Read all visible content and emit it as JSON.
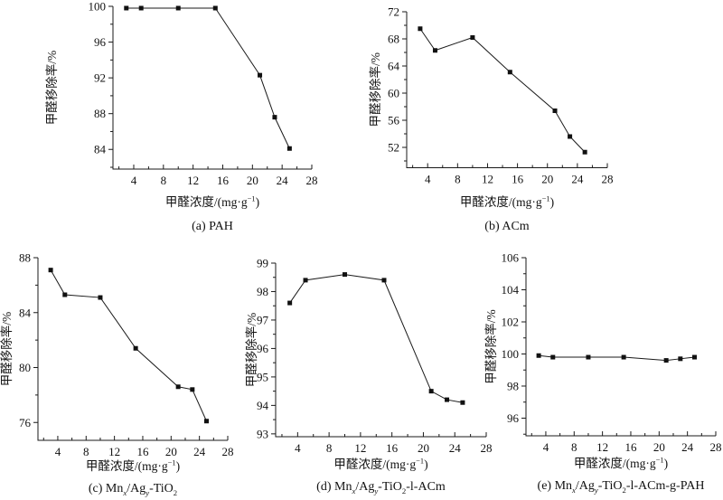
{
  "figure": {
    "description": "五个甲醛移除率曲线图 (a)-(e)",
    "ylabel": "甲醛移除率/%",
    "xlabel_text": "甲醛浓度/(mg·g⁻¹)",
    "line_color": "#1a1a1a",
    "marker": "square"
  },
  "chart_data": [
    {
      "type": "line",
      "name": "PAH",
      "caption_text": "(a) PAH",
      "caption_segments": [
        [
          "(a) PAH",
          ""
        ]
      ],
      "xlabel": "甲醛浓度/(mg·g⁻¹)",
      "xlabel_segments": [
        [
          "甲醛浓度/(mg·g",
          ""
        ],
        [
          "−1",
          "sup"
        ],
        [
          ")",
          ""
        ]
      ],
      "ylabel": "甲醛移除率/%",
      "x": [
        3,
        5,
        10,
        15,
        21,
        23,
        25
      ],
      "values": [
        99.8,
        99.8,
        99.8,
        99.8,
        92.3,
        87.6,
        84.1
      ],
      "xlim": [
        1.2,
        28
      ],
      "xticks": [
        4,
        8,
        12,
        16,
        20,
        24,
        28
      ],
      "xminor": 2,
      "ylim": [
        81.8,
        100
      ],
      "yticks": [
        84,
        88,
        92,
        96,
        100
      ],
      "yminor": 2,
      "grid": false,
      "legend": "none"
    },
    {
      "type": "line",
      "name": "ACm",
      "caption_text": "(b) ACm",
      "caption_segments": [
        [
          "(b) ACm",
          ""
        ]
      ],
      "xlabel": "甲醛浓度/(mg·g⁻¹)",
      "xlabel_segments": [
        [
          "甲醛浓度/(mg·g",
          ""
        ],
        [
          "−1",
          "sup"
        ],
        [
          ")",
          ""
        ]
      ],
      "ylabel": "甲醛移除率/%",
      "x": [
        3,
        5,
        10,
        15,
        21,
        23,
        25
      ],
      "values": [
        69.5,
        66.3,
        68.2,
        63.1,
        57.4,
        53.6,
        51.3
      ],
      "xlim": [
        1.2,
        28
      ],
      "xticks": [
        4,
        8,
        12,
        16,
        20,
        24,
        28
      ],
      "xminor": 2,
      "ylim": [
        49,
        72
      ],
      "yticks": [
        52,
        56,
        60,
        64,
        68,
        72
      ],
      "yminor": 2,
      "grid": false,
      "legend": "none"
    },
    {
      "type": "line",
      "name": "Mnx/Agy-TiO2",
      "caption_text": "(c) Mnx/Agy-TiO2",
      "caption_segments": [
        [
          "(c) Mn",
          ""
        ],
        [
          "x",
          "subi"
        ],
        [
          "/Ag",
          ""
        ],
        [
          "y",
          "subi"
        ],
        [
          "-TiO",
          ""
        ],
        [
          "2",
          "sub"
        ]
      ],
      "xlabel": "甲醛浓度/(mg·g⁻¹)",
      "xlabel_segments": [
        [
          "甲醛浓度/(mg·g",
          ""
        ],
        [
          "−1",
          "sup"
        ],
        [
          ")",
          ""
        ]
      ],
      "ylabel": "甲醛移除率/%",
      "x": [
        3,
        5,
        10,
        15,
        21,
        23,
        25
      ],
      "values": [
        87.1,
        85.3,
        85.1,
        81.4,
        78.6,
        78.4,
        76.1
      ],
      "xlim": [
        1.2,
        28
      ],
      "xticks": [
        4,
        8,
        12,
        16,
        20,
        24,
        28
      ],
      "xminor": 2,
      "ylim": [
        74.7,
        88
      ],
      "yticks": [
        76,
        80,
        84,
        88
      ],
      "yminor": 2,
      "grid": false,
      "legend": "none"
    },
    {
      "type": "line",
      "name": "Mnx/Agy-TiO2-l-ACm",
      "caption_text": "(d) Mnx/Agy-TiO2-l-ACm",
      "caption_segments": [
        [
          "(d) Mn",
          ""
        ],
        [
          "x",
          "subi"
        ],
        [
          "/Ag",
          ""
        ],
        [
          "y",
          "subi"
        ],
        [
          "-TiO",
          ""
        ],
        [
          "2",
          "sub"
        ],
        [
          "-l-ACm",
          ""
        ]
      ],
      "xlabel": "甲醛浓度/(mg·g⁻¹)",
      "xlabel_segments": [
        [
          "甲醛浓度/(mg·g",
          ""
        ],
        [
          "−1",
          "sup"
        ],
        [
          ")",
          ""
        ]
      ],
      "ylabel": "甲醛移除率/%",
      "x": [
        3,
        5,
        10,
        15,
        21,
        23,
        25
      ],
      "values": [
        97.6,
        98.4,
        98.6,
        98.4,
        94.5,
        94.2,
        94.1
      ],
      "xlim": [
        1.2,
        28
      ],
      "xticks": [
        4,
        8,
        12,
        16,
        20,
        24,
        28
      ],
      "xminor": 2,
      "ylim": [
        92.9,
        99
      ],
      "yticks": [
        93,
        94,
        95,
        96,
        97,
        98,
        99
      ],
      "yminor": 0.5,
      "grid": false,
      "legend": "none"
    },
    {
      "type": "line",
      "name": "Mnx/Agy-TiO2-l-ACm-g-PAH",
      "caption_text": "(e) Mnx/Agy-TiO2-l-ACm-g-PAH",
      "caption_segments": [
        [
          "(e) Mn",
          ""
        ],
        [
          "x",
          "subi"
        ],
        [
          "/Ag",
          ""
        ],
        [
          "y",
          "subi"
        ],
        [
          "-TiO",
          ""
        ],
        [
          "2",
          "sub"
        ],
        [
          "-l-ACm-g-PAH",
          ""
        ]
      ],
      "xlabel": "甲醛浓度/(mg·g⁻¹)",
      "xlabel_segments": [
        [
          "甲醛浓度/(mg·g",
          ""
        ],
        [
          "−1",
          "sup"
        ],
        [
          ")",
          ""
        ]
      ],
      "ylabel": "甲醛移除率/%",
      "x": [
        3,
        5,
        10,
        15,
        21,
        23,
        25
      ],
      "values": [
        99.9,
        99.8,
        99.8,
        99.8,
        99.6,
        99.7,
        99.8
      ],
      "xlim": [
        1.2,
        28
      ],
      "xticks": [
        4,
        8,
        12,
        16,
        20,
        24,
        28
      ],
      "xminor": 2,
      "ylim": [
        94.9,
        106
      ],
      "yticks": [
        96,
        98,
        100,
        102,
        104,
        106
      ],
      "yminor": 1,
      "grid": false,
      "legend": "none"
    }
  ]
}
